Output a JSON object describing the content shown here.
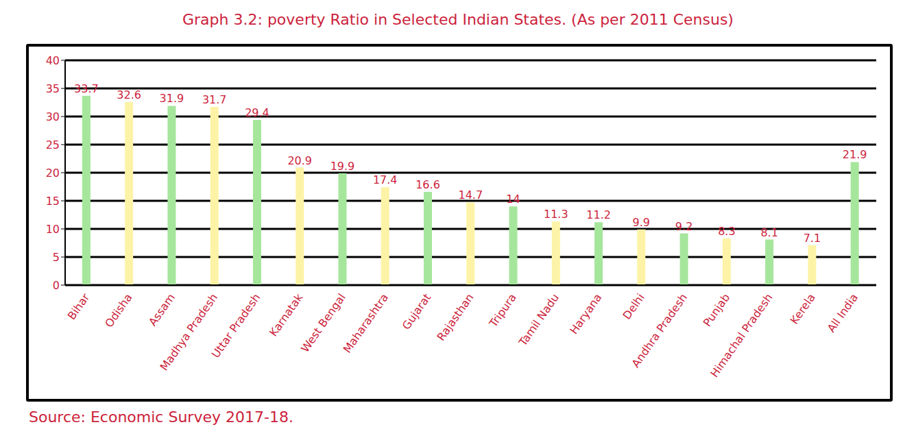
{
  "chart_data": {
    "type": "bar",
    "title": "Graph 3.2: poverty Ratio in Selected Indian States. (As per 2011 Census)",
    "source": "Source: Economic Survey 2017-18.",
    "categories": [
      "Bihar",
      "Odisha",
      "Assam",
      "Madhya Pradesh",
      "Uttar Pradesh",
      "Karnatak",
      "West Bengal",
      "Maharashtra",
      "Gujarat",
      "Rajasthan",
      "Tripura",
      "Tamil Nadu",
      "Haryana",
      "Delhi",
      "Andhra Pradesh",
      "Punjab",
      "Himachal Pradesh",
      "Kerela",
      "All India"
    ],
    "values": [
      33.7,
      32.6,
      31.9,
      31.7,
      29.4,
      20.9,
      19.9,
      17.4,
      16.6,
      14.7,
      14,
      11.3,
      11.2,
      9.9,
      9.2,
      8.3,
      8.1,
      7.1,
      21.9
    ],
    "colors": [
      "#a6e69c",
      "#fdf3a6",
      "#a6e69c",
      "#fdf3a6",
      "#a6e69c",
      "#fdf3a6",
      "#a6e69c",
      "#fdf3a6",
      "#a6e69c",
      "#fdf3a6",
      "#a6e69c",
      "#fdf3a6",
      "#a6e69c",
      "#fdf3a6",
      "#a6e69c",
      "#fdf3a6",
      "#a6e69c",
      "#fdf3a6",
      "#a6e69c"
    ],
    "ylim": [
      0,
      40
    ],
    "yticks": [
      0,
      5,
      10,
      15,
      20,
      25,
      30,
      35,
      40
    ],
    "grid": true,
    "data_labels": true
  }
}
